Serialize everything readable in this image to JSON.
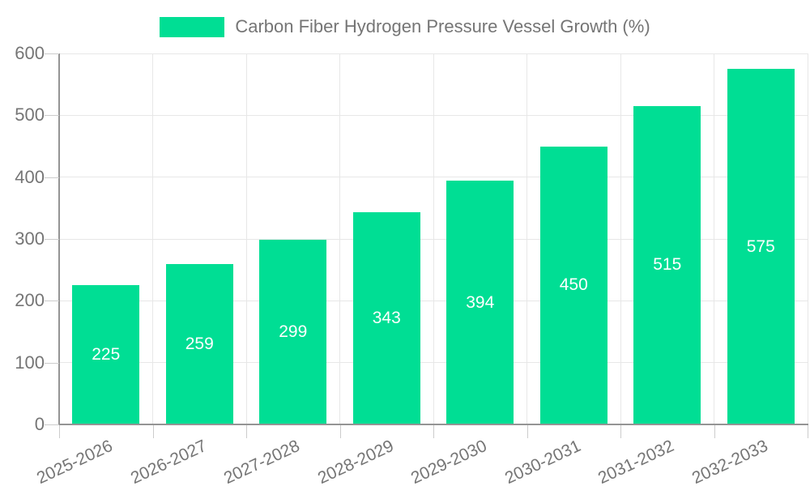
{
  "colors": {
    "bar": "#00DE94",
    "grid": "#e7e7e7",
    "tick": "#cccccc",
    "axis_line": "#949494",
    "axis_text": "#757575",
    "value_label": "#ffffff",
    "background": "#ffffff"
  },
  "chart_data": {
    "type": "bar",
    "title": "",
    "legend_position": "top",
    "categories": [
      "2025-2026",
      "2026-2027",
      "2027-2028",
      "2028-2029",
      "2029-2030",
      "2030-2031",
      "2031-2032",
      "2032-2033"
    ],
    "series": [
      {
        "name": "Carbon Fiber Hydrogen Pressure Vessel Growth (%)",
        "values": [
          225,
          259,
          299,
          343,
          394,
          450,
          515,
          575
        ]
      }
    ],
    "xlabel": "",
    "ylabel": "",
    "ylim": [
      0,
      600
    ],
    "yticks": [
      0,
      100,
      200,
      300,
      400,
      500,
      600
    ],
    "grid": true,
    "value_label_position": "inside-center"
  }
}
